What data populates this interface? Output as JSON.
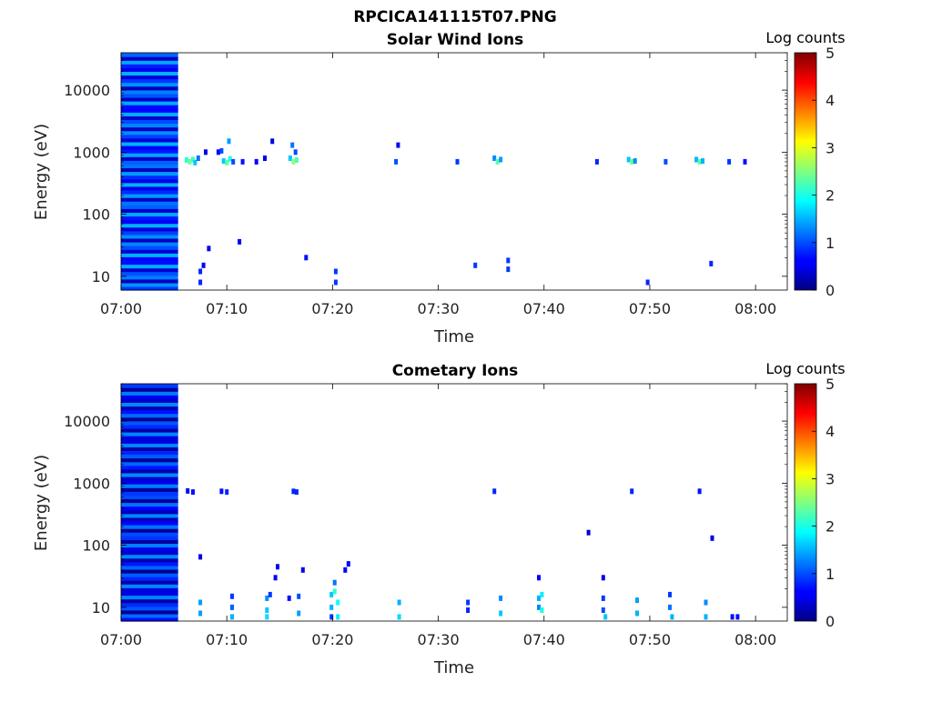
{
  "figure": {
    "title": "RPCICA141115T07.PNG"
  },
  "colorbar": {
    "label": "Log counts",
    "ticks": [
      "0",
      "1",
      "2",
      "3",
      "4",
      "5"
    ],
    "min": 0,
    "max": 5,
    "colormap": "jet"
  },
  "chart_data": [
    {
      "type": "heatmap",
      "title": "Solar Wind Ions",
      "xlabel": "Time",
      "ylabel": "Energy (eV)",
      "xlim": [
        "07:00",
        "08:03"
      ],
      "ylim": [
        6,
        40000
      ],
      "yscale": "log",
      "xticks": [
        "07:00",
        "07:10",
        "07:20",
        "07:30",
        "07:40",
        "07:50",
        "08:00"
      ],
      "yticks": [
        10,
        100,
        1000,
        10000
      ],
      "ytick_labels": [
        "10",
        "100",
        "1000",
        "10000"
      ],
      "background_block": {
        "x_start_min": 0,
        "x_end_min": 5.4,
        "value_range": [
          0.3,
          1.5
        ]
      },
      "cells": [
        [
          6.2,
          750,
          2.1
        ],
        [
          6.5,
          700,
          2.4
        ],
        [
          6.8,
          760,
          2.2
        ],
        [
          7.0,
          680,
          1.6
        ],
        [
          7.3,
          800,
          1.2
        ],
        [
          7.5,
          12,
          0.8
        ],
        [
          7.5,
          8,
          0.8
        ],
        [
          7.8,
          15,
          0.6
        ],
        [
          8.3,
          28,
          0.5
        ],
        [
          8.0,
          1000,
          0.5
        ],
        [
          9.2,
          1000,
          0.6
        ],
        [
          9.5,
          1050,
          1.0
        ],
        [
          9.7,
          720,
          1.6
        ],
        [
          10.0,
          680,
          2.3
        ],
        [
          10.3,
          780,
          2.0
        ],
        [
          10.6,
          700,
          1.0
        ],
        [
          10.2,
          1500,
          1.4
        ],
        [
          11.2,
          36,
          0.6
        ],
        [
          11.5,
          700,
          0.7
        ],
        [
          12.8,
          700,
          0.6
        ],
        [
          13.6,
          800,
          0.6
        ],
        [
          14.3,
          1500,
          0.5
        ],
        [
          16.0,
          800,
          1.6
        ],
        [
          16.3,
          700,
          2.6
        ],
        [
          16.6,
          750,
          2.2
        ],
        [
          16.2,
          1300,
          1.2
        ],
        [
          16.5,
          1000,
          1.0
        ],
        [
          17.5,
          20,
          0.7
        ],
        [
          20.3,
          12,
          0.9
        ],
        [
          20.3,
          8,
          0.9
        ],
        [
          26.0,
          700,
          1.0
        ],
        [
          26.2,
          1300,
          0.6
        ],
        [
          31.8,
          700,
          0.9
        ],
        [
          33.5,
          15,
          0.9
        ],
        [
          35.3,
          800,
          1.3
        ],
        [
          35.6,
          700,
          2.3
        ],
        [
          35.9,
          760,
          1.4
        ],
        [
          36.6,
          18,
          0.9
        ],
        [
          36.6,
          13,
          0.9
        ],
        [
          45.0,
          700,
          0.8
        ],
        [
          48.0,
          760,
          1.6
        ],
        [
          48.3,
          700,
          2.4
        ],
        [
          48.6,
          720,
          1.3
        ],
        [
          49.8,
          8,
          0.8
        ],
        [
          51.5,
          700,
          1.0
        ],
        [
          54.4,
          760,
          1.5
        ],
        [
          54.7,
          700,
          2.3
        ],
        [
          55.0,
          720,
          1.5
        ],
        [
          55.8,
          16,
          0.8
        ],
        [
          57.5,
          700,
          0.9
        ],
        [
          59.0,
          700,
          0.7
        ]
      ]
    },
    {
      "type": "heatmap",
      "title": "Cometary Ions",
      "xlabel": "Time",
      "ylabel": "Energy (eV)",
      "xlim": [
        "07:00",
        "08:03"
      ],
      "ylim": [
        6,
        40000
      ],
      "yscale": "log",
      "xticks": [
        "07:00",
        "07:10",
        "07:20",
        "07:30",
        "07:40",
        "07:50",
        "08:00"
      ],
      "yticks": [
        10,
        100,
        1000,
        10000
      ],
      "ytick_labels": [
        "10",
        "100",
        "1000",
        "10000"
      ],
      "background_block": {
        "x_start_min": 0,
        "x_end_min": 5.4,
        "value_range": [
          0.1,
          1.3
        ]
      },
      "cells": [
        [
          6.3,
          750,
          0.7
        ],
        [
          6.8,
          720,
          0.7
        ],
        [
          9.5,
          740,
          0.7
        ],
        [
          10.0,
          720,
          0.8
        ],
        [
          16.3,
          740,
          0.8
        ],
        [
          16.6,
          720,
          0.8
        ],
        [
          35.3,
          740,
          0.8
        ],
        [
          48.3,
          740,
          0.8
        ],
        [
          54.7,
          740,
          0.7
        ],
        [
          7.5,
          65,
          0.5
        ],
        [
          7.5,
          12,
          1.4
        ],
        [
          7.5,
          8,
          1.4
        ],
        [
          10.5,
          15,
          0.9
        ],
        [
          10.5,
          10,
          1.1
        ],
        [
          10.5,
          7,
          1.5
        ],
        [
          13.8,
          14,
          1.3
        ],
        [
          13.8,
          9,
          1.6
        ],
        [
          13.8,
          7,
          1.7
        ],
        [
          14.1,
          16,
          0.9
        ],
        [
          14.6,
          30,
          0.6
        ],
        [
          14.8,
          45,
          0.6
        ],
        [
          15.9,
          14,
          0.7
        ],
        [
          16.8,
          15,
          1.0
        ],
        [
          16.8,
          8,
          1.4
        ],
        [
          17.2,
          40,
          0.5
        ],
        [
          19.9,
          16,
          1.6
        ],
        [
          19.9,
          10,
          1.5
        ],
        [
          19.9,
          7,
          0.9
        ],
        [
          20.2,
          18,
          2.1
        ],
        [
          20.5,
          12,
          1.9
        ],
        [
          20.5,
          7,
          1.8
        ],
        [
          20.2,
          25,
          1.2
        ],
        [
          21.2,
          40,
          0.6
        ],
        [
          21.5,
          50,
          0.6
        ],
        [
          26.3,
          12,
          1.5
        ],
        [
          26.3,
          7,
          1.7
        ],
        [
          32.8,
          12,
          0.9
        ],
        [
          32.8,
          9,
          0.8
        ],
        [
          35.9,
          14,
          1.3
        ],
        [
          35.9,
          8,
          1.6
        ],
        [
          39.5,
          14,
          1.5
        ],
        [
          39.5,
          10,
          1.3
        ],
        [
          39.8,
          16,
          1.8
        ],
        [
          39.8,
          9,
          2.0
        ],
        [
          39.5,
          30,
          0.6
        ],
        [
          45.6,
          14,
          0.9
        ],
        [
          45.6,
          9,
          1.0
        ],
        [
          45.8,
          7,
          1.6
        ],
        [
          45.6,
          30,
          0.5
        ],
        [
          48.8,
          13,
          1.4
        ],
        [
          48.8,
          8,
          1.5
        ],
        [
          51.9,
          16,
          0.9
        ],
        [
          51.9,
          10,
          1.2
        ],
        [
          52.1,
          7,
          1.5
        ],
        [
          55.3,
          12,
          1.3
        ],
        [
          55.3,
          7,
          1.5
        ],
        [
          57.8,
          7,
          0.7
        ],
        [
          58.3,
          7,
          0.7
        ],
        [
          44.2,
          160,
          0.4
        ],
        [
          55.9,
          130,
          0.5
        ]
      ]
    }
  ]
}
